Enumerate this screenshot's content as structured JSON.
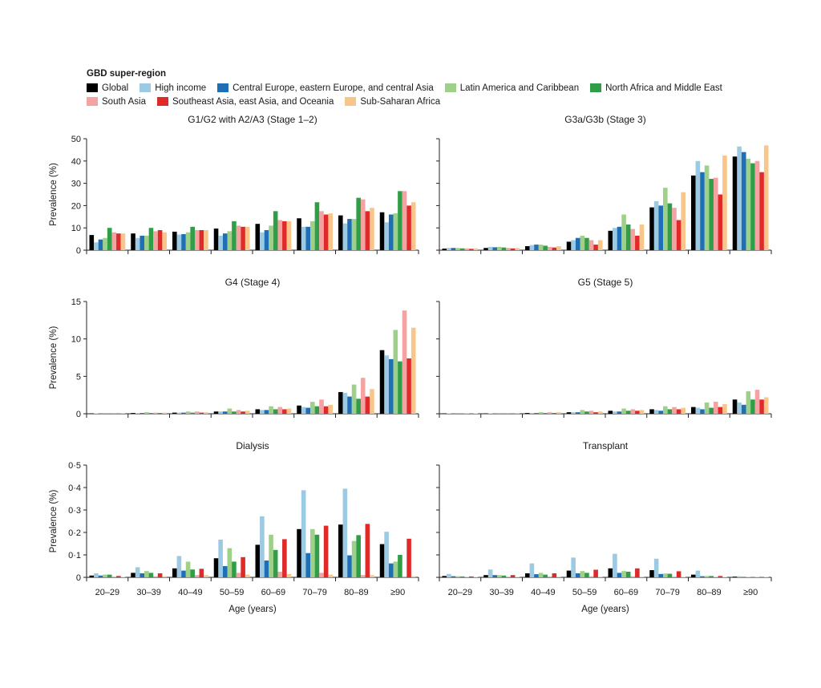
{
  "legend": {
    "title": "GBD super-region",
    "items": [
      {
        "name": "Global",
        "color": "#000000"
      },
      {
        "name": "High income",
        "color": "#9ccae3"
      },
      {
        "name": "Central Europe, eastern Europe, and central Asia",
        "color": "#1f6fb6"
      },
      {
        "name": "Latin America and Caribbean",
        "color": "#9fd08a"
      },
      {
        "name": "North Africa and Middle East",
        "color": "#2f9e46"
      },
      {
        "name": "South Asia",
        "color": "#f4a3a3"
      },
      {
        "name": "Southeast Asia, east Asia, and Oceania",
        "color": "#e02a2a"
      },
      {
        "name": "Sub-Saharan Africa",
        "color": "#f8c68a"
      }
    ]
  },
  "chart_data": [
    {
      "type": "bar",
      "title": "G1/G2 with A2/A3 (Stage 1–2)",
      "ylabel": "Prevalence (%)",
      "xlabel": "",
      "ylim": [
        0,
        50
      ],
      "yticks": [
        "0",
        "10",
        "20",
        "30",
        "40",
        "50"
      ],
      "categories": [
        "20–29",
        "30–39",
        "40–49",
        "50–59",
        "60–69",
        "70–79",
        "80–89",
        "≥90"
      ],
      "series": [
        {
          "name": "Global",
          "values": [
            6.8,
            7.5,
            8.3,
            9.7,
            11.8,
            14.3,
            15.6,
            17.0
          ]
        },
        {
          "name": "High income",
          "values": [
            3.5,
            5.5,
            7.0,
            6.5,
            8.0,
            10.5,
            12.0,
            12.5
          ]
        },
        {
          "name": "Central Europe, eastern Europe, and central Asia",
          "values": [
            4.8,
            6.5,
            7.2,
            7.5,
            9.0,
            10.5,
            14.0,
            16.0
          ]
        },
        {
          "name": "Latin America and Caribbean",
          "values": [
            5.5,
            6.5,
            8.0,
            8.5,
            11.0,
            13.0,
            14.0,
            16.5
          ]
        },
        {
          "name": "North Africa and Middle East",
          "values": [
            10.0,
            10.0,
            10.5,
            13.0,
            17.5,
            21.5,
            23.5,
            26.5
          ]
        },
        {
          "name": "South Asia",
          "values": [
            8.0,
            8.5,
            9.0,
            11.0,
            13.5,
            17.5,
            22.8,
            26.5
          ]
        },
        {
          "name": "Southeast Asia, east Asia, and Oceania",
          "values": [
            7.5,
            9.0,
            9.0,
            10.5,
            13.0,
            16.0,
            17.5,
            20.0
          ]
        },
        {
          "name": "Sub-Saharan Africa",
          "values": [
            7.5,
            8.0,
            9.0,
            10.5,
            13.0,
            16.5,
            19.0,
            21.5
          ]
        }
      ]
    },
    {
      "type": "bar",
      "title": "G3a/G3b (Stage 3)",
      "ylabel": "",
      "xlabel": "",
      "ylim": [
        0,
        50
      ],
      "yticks": [
        "",
        "",
        "",
        "",
        "",
        ""
      ],
      "categories": [
        "20–29",
        "30–39",
        "40–49",
        "50–59",
        "60–69",
        "70–79",
        "80–89",
        "≥90"
      ],
      "series": [
        {
          "name": "Global",
          "values": [
            0.7,
            1.0,
            1.8,
            3.8,
            8.7,
            19.2,
            33.5,
            42.0
          ]
        },
        {
          "name": "High income",
          "values": [
            1.0,
            1.5,
            2.3,
            4.5,
            10.0,
            22.0,
            40.0,
            46.5
          ]
        },
        {
          "name": "Central Europe, eastern Europe, and central Asia",
          "values": [
            1.0,
            1.3,
            2.5,
            5.5,
            10.5,
            20.0,
            35.0,
            44.0
          ]
        },
        {
          "name": "Latin America and Caribbean",
          "values": [
            1.0,
            1.5,
            2.5,
            6.5,
            16.0,
            28.0,
            38.0,
            41.0
          ]
        },
        {
          "name": "North Africa and Middle East",
          "values": [
            0.8,
            1.2,
            2.0,
            5.5,
            11.5,
            21.0,
            32.0,
            39.0
          ]
        },
        {
          "name": "South Asia",
          "values": [
            0.8,
            1.0,
            1.5,
            4.5,
            9.5,
            19.0,
            32.5,
            40.0
          ]
        },
        {
          "name": "Southeast Asia, east Asia, and Oceania",
          "values": [
            0.6,
            0.8,
            1.2,
            2.5,
            6.5,
            13.5,
            25.0,
            35.0
          ]
        },
        {
          "name": "Sub-Saharan Africa",
          "values": [
            0.8,
            1.0,
            1.8,
            4.5,
            11.5,
            26.0,
            42.5,
            47.0
          ]
        }
      ]
    },
    {
      "type": "bar",
      "title": "G4 (Stage 4)",
      "ylabel": "Prevalence (%)",
      "xlabel": "",
      "ylim": [
        0,
        15
      ],
      "yticks": [
        "0",
        "5",
        "10",
        "15"
      ],
      "categories": [
        "20–29",
        "30–39",
        "40–49",
        "50–59",
        "60–69",
        "70–79",
        "80–89",
        "≥90"
      ],
      "series": [
        {
          "name": "Global",
          "values": [
            0.05,
            0.1,
            0.15,
            0.3,
            0.6,
            1.1,
            2.9,
            8.5
          ]
        },
        {
          "name": "High income",
          "values": [
            0.05,
            0.1,
            0.15,
            0.3,
            0.5,
            0.9,
            2.8,
            7.8
          ]
        },
        {
          "name": "Central Europe, eastern Europe, and central Asia",
          "values": [
            0.05,
            0.1,
            0.15,
            0.3,
            0.5,
            0.8,
            2.3,
            7.3
          ]
        },
        {
          "name": "Latin America and Caribbean",
          "values": [
            0.1,
            0.2,
            0.3,
            0.7,
            1.0,
            1.6,
            3.9,
            11.2
          ]
        },
        {
          "name": "North Africa and Middle East",
          "values": [
            0.05,
            0.1,
            0.15,
            0.3,
            0.6,
            1.0,
            2.0,
            7.0
          ]
        },
        {
          "name": "South Asia",
          "values": [
            0.1,
            0.15,
            0.3,
            0.5,
            0.9,
            1.9,
            4.8,
            13.8
          ]
        },
        {
          "name": "Southeast Asia, east Asia, and Oceania",
          "values": [
            0.05,
            0.1,
            0.15,
            0.3,
            0.6,
            1.0,
            2.3,
            7.4
          ]
        },
        {
          "name": "Sub-Saharan Africa",
          "values": [
            0.1,
            0.15,
            0.2,
            0.4,
            0.7,
            1.2,
            3.3,
            11.5
          ]
        }
      ]
    },
    {
      "type": "bar",
      "title": "G5 (Stage 5)",
      "ylabel": "",
      "xlabel": "",
      "ylim": [
        0,
        15
      ],
      "yticks": [
        "",
        "",
        "",
        ""
      ],
      "categories": [
        "20–29",
        "30–39",
        "40–49",
        "50–59",
        "60–69",
        "70–79",
        "80–89",
        "≥90"
      ],
      "series": [
        {
          "name": "Global",
          "values": [
            0.05,
            0.05,
            0.1,
            0.2,
            0.4,
            0.6,
            0.9,
            1.9
          ]
        },
        {
          "name": "High income",
          "values": [
            0.05,
            0.05,
            0.1,
            0.2,
            0.3,
            0.5,
            0.8,
            1.5
          ]
        },
        {
          "name": "Central Europe, eastern Europe, and central Asia",
          "values": [
            0.05,
            0.05,
            0.1,
            0.2,
            0.3,
            0.4,
            0.6,
            1.2
          ]
        },
        {
          "name": "Latin America and Caribbean",
          "values": [
            0.1,
            0.1,
            0.2,
            0.5,
            0.7,
            1.0,
            1.5,
            3.0
          ]
        },
        {
          "name": "North Africa and Middle East",
          "values": [
            0.05,
            0.05,
            0.1,
            0.3,
            0.4,
            0.6,
            0.8,
            1.9
          ]
        },
        {
          "name": "South Asia",
          "values": [
            0.05,
            0.1,
            0.2,
            0.4,
            0.6,
            0.9,
            1.6,
            3.2
          ]
        },
        {
          "name": "Southeast Asia, east Asia, and Oceania",
          "values": [
            0.05,
            0.05,
            0.1,
            0.2,
            0.4,
            0.6,
            0.9,
            1.9
          ]
        },
        {
          "name": "Sub-Saharan Africa",
          "values": [
            0.05,
            0.1,
            0.2,
            0.3,
            0.5,
            0.8,
            1.3,
            2.2
          ]
        }
      ]
    },
    {
      "type": "bar",
      "title": "Dialysis",
      "ylabel": "Prevalence (%)",
      "xlabel": "Age (years)",
      "ylim": [
        0,
        0.5
      ],
      "yticks": [
        "0",
        "0·1",
        "0·2",
        "0·3",
        "0·4",
        "0·5"
      ],
      "categories": [
        "20–29",
        "30–39",
        "40–49",
        "50–59",
        "60–69",
        "70–79",
        "80–89",
        "≥90"
      ],
      "series": [
        {
          "name": "Global",
          "values": [
            0.008,
            0.02,
            0.04,
            0.085,
            0.145,
            0.215,
            0.235,
            0.148
          ]
        },
        {
          "name": "High income",
          "values": [
            0.018,
            0.045,
            0.095,
            0.168,
            0.272,
            0.388,
            0.395,
            0.203
          ]
        },
        {
          "name": "Central Europe, eastern Europe, and central Asia",
          "values": [
            0.008,
            0.018,
            0.03,
            0.05,
            0.075,
            0.108,
            0.098,
            0.062
          ]
        },
        {
          "name": "Latin America and Caribbean",
          "values": [
            0.012,
            0.028,
            0.07,
            0.13,
            0.19,
            0.215,
            0.162,
            0.07
          ]
        },
        {
          "name": "North Africa and Middle East",
          "values": [
            0.012,
            0.02,
            0.035,
            0.07,
            0.122,
            0.19,
            0.188,
            0.1
          ]
        },
        {
          "name": "South Asia",
          "values": [
            0.003,
            0.005,
            0.01,
            0.02,
            0.025,
            0.02,
            0.01,
            0.004
          ]
        },
        {
          "name": "Southeast Asia, east Asia, and Oceania",
          "values": [
            0.006,
            0.018,
            0.038,
            0.09,
            0.17,
            0.23,
            0.238,
            0.172
          ]
        },
        {
          "name": "Sub-Saharan Africa",
          "values": [
            0.002,
            0.005,
            0.01,
            0.012,
            0.015,
            0.012,
            0.01,
            0.005
          ]
        }
      ]
    },
    {
      "type": "bar",
      "title": "Transplant",
      "ylabel": "",
      "xlabel": "Age (years)",
      "ylim": [
        0,
        0.5
      ],
      "yticks": [
        "",
        "",
        "",
        "",
        "",
        ""
      ],
      "categories": [
        "20–29",
        "30–39",
        "40–49",
        "50–59",
        "60–69",
        "70–79",
        "80–89",
        "≥90"
      ],
      "series": [
        {
          "name": "Global",
          "values": [
            0.006,
            0.01,
            0.018,
            0.03,
            0.04,
            0.032,
            0.012,
            0.003
          ]
        },
        {
          "name": "High income",
          "values": [
            0.015,
            0.035,
            0.062,
            0.088,
            0.105,
            0.083,
            0.03,
            0.005
          ]
        },
        {
          "name": "Central Europe, eastern Europe, and central Asia",
          "values": [
            0.005,
            0.01,
            0.014,
            0.018,
            0.02,
            0.015,
            0.005,
            0.002
          ]
        },
        {
          "name": "Latin America and Caribbean",
          "values": [
            0.005,
            0.01,
            0.02,
            0.028,
            0.028,
            0.017,
            0.006,
            0.002
          ]
        },
        {
          "name": "North Africa and Middle East",
          "values": [
            0.004,
            0.008,
            0.012,
            0.02,
            0.025,
            0.016,
            0.006,
            0.002
          ]
        },
        {
          "name": "South Asia",
          "values": [
            0.002,
            0.003,
            0.004,
            0.005,
            0.005,
            0.003,
            0.002,
            0.001
          ]
        },
        {
          "name": "Southeast Asia, east Asia, and Oceania",
          "values": [
            0.004,
            0.01,
            0.018,
            0.034,
            0.04,
            0.027,
            0.006,
            0.002
          ]
        },
        {
          "name": "Sub-Saharan Africa",
          "values": [
            0.002,
            0.002,
            0.003,
            0.003,
            0.003,
            0.002,
            0.001,
            0.001
          ]
        }
      ]
    }
  ]
}
